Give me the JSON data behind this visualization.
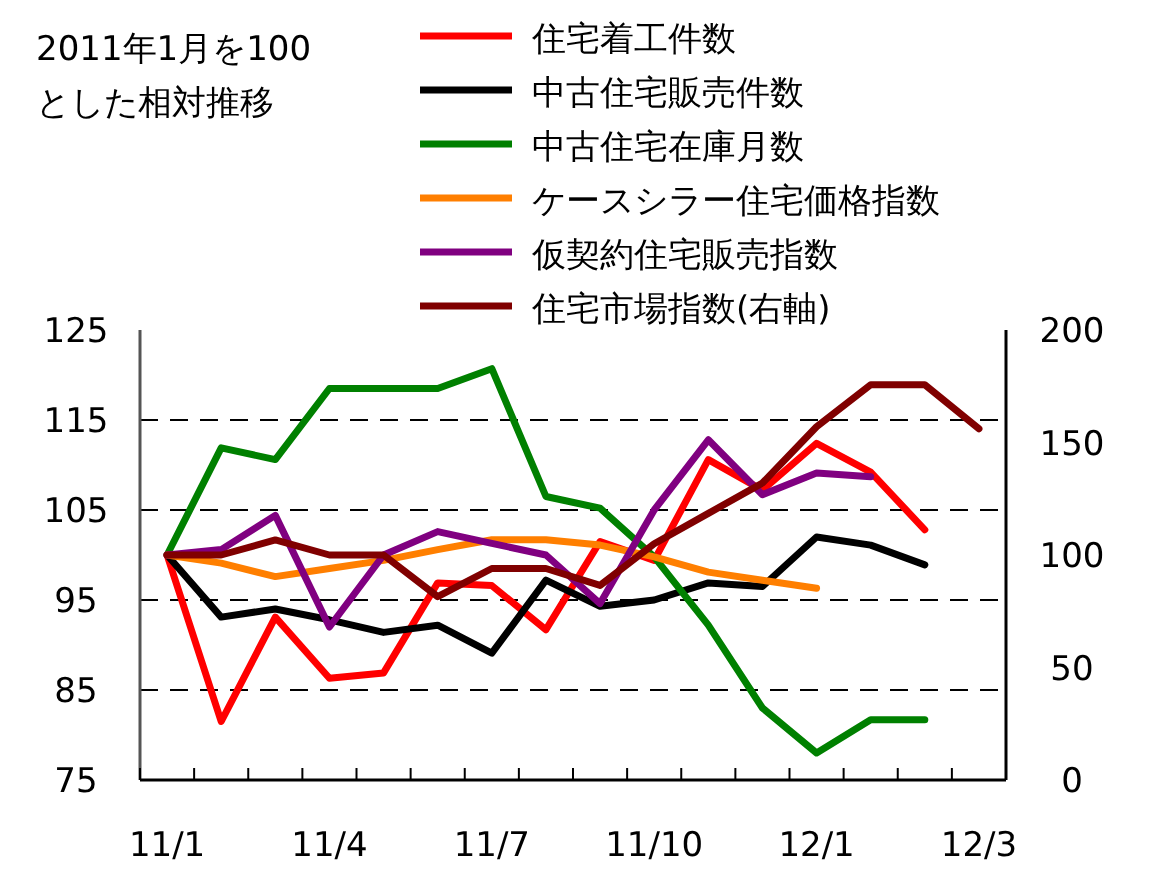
{
  "chart_data": {
    "type": "line",
    "title": "2011年1月を100\nとした相対推移",
    "categories": [
      "11/1",
      null,
      null,
      "11/4",
      null,
      null,
      "11/7",
      null,
      null,
      "11/10",
      null,
      null,
      "12/1",
      null,
      null,
      "12/3"
    ],
    "series": [
      {
        "name": "住宅着工件数",
        "color": "#ff0000",
        "values": [
          100,
          81.5,
          93.1,
          86.3,
          86.9,
          96.9,
          96.6,
          91.7,
          101.5,
          99.4,
          110.6,
          107.2,
          112.4,
          109.2,
          102.8,
          null
        ]
      },
      {
        "name": "中古住宅販売件数",
        "color": "#000000",
        "values": [
          100,
          93.1,
          94,
          92.8,
          91.4,
          92.2,
          89.1,
          97.2,
          94.3,
          95,
          96.9,
          96.5,
          102,
          101.1,
          98.9,
          null
        ]
      },
      {
        "name": "中古住宅在庫月数",
        "color": "#008000",
        "values": [
          100,
          111.9,
          110.6,
          118.5,
          118.5,
          118.5,
          120.7,
          106.5,
          105.2,
          99.8,
          92.2,
          83,
          78,
          81.7,
          81.7,
          null
        ]
      },
      {
        "name": "ケースシラー住宅価格指数",
        "color": "#ff7f00",
        "values": [
          100,
          99.1,
          97.6,
          98.5,
          99.4,
          100.6,
          101.7,
          101.7,
          101.1,
          99.8,
          98.1,
          97.2,
          96.3,
          null,
          null,
          null
        ]
      },
      {
        "name": "仮契約住宅販売指数",
        "color": "#800080",
        "values": [
          100,
          100.6,
          104.4,
          92,
          100,
          102.6,
          101.3,
          100,
          94.6,
          105,
          112.8,
          106.7,
          109.1,
          108.7,
          null,
          null
        ]
      },
      {
        "name": "住宅市場指数(右軸)",
        "color": "#800000",
        "axis": "y2",
        "values": [
          100,
          100,
          106.7,
          100,
          100,
          81.5,
          94,
          94,
          86.5,
          105,
          118.5,
          132,
          157,
          175.7,
          175.7,
          156.1
        ]
      }
    ],
    "ylim": [
      75,
      125
    ],
    "yticks": [
      75,
      85,
      95,
      105,
      115,
      125
    ],
    "y2lim": [
      0,
      200
    ],
    "y2ticks": [
      0,
      50,
      100,
      150,
      200
    ],
    "grid": "y",
    "line_style": "solid",
    "marker": "none",
    "legend": "top"
  }
}
